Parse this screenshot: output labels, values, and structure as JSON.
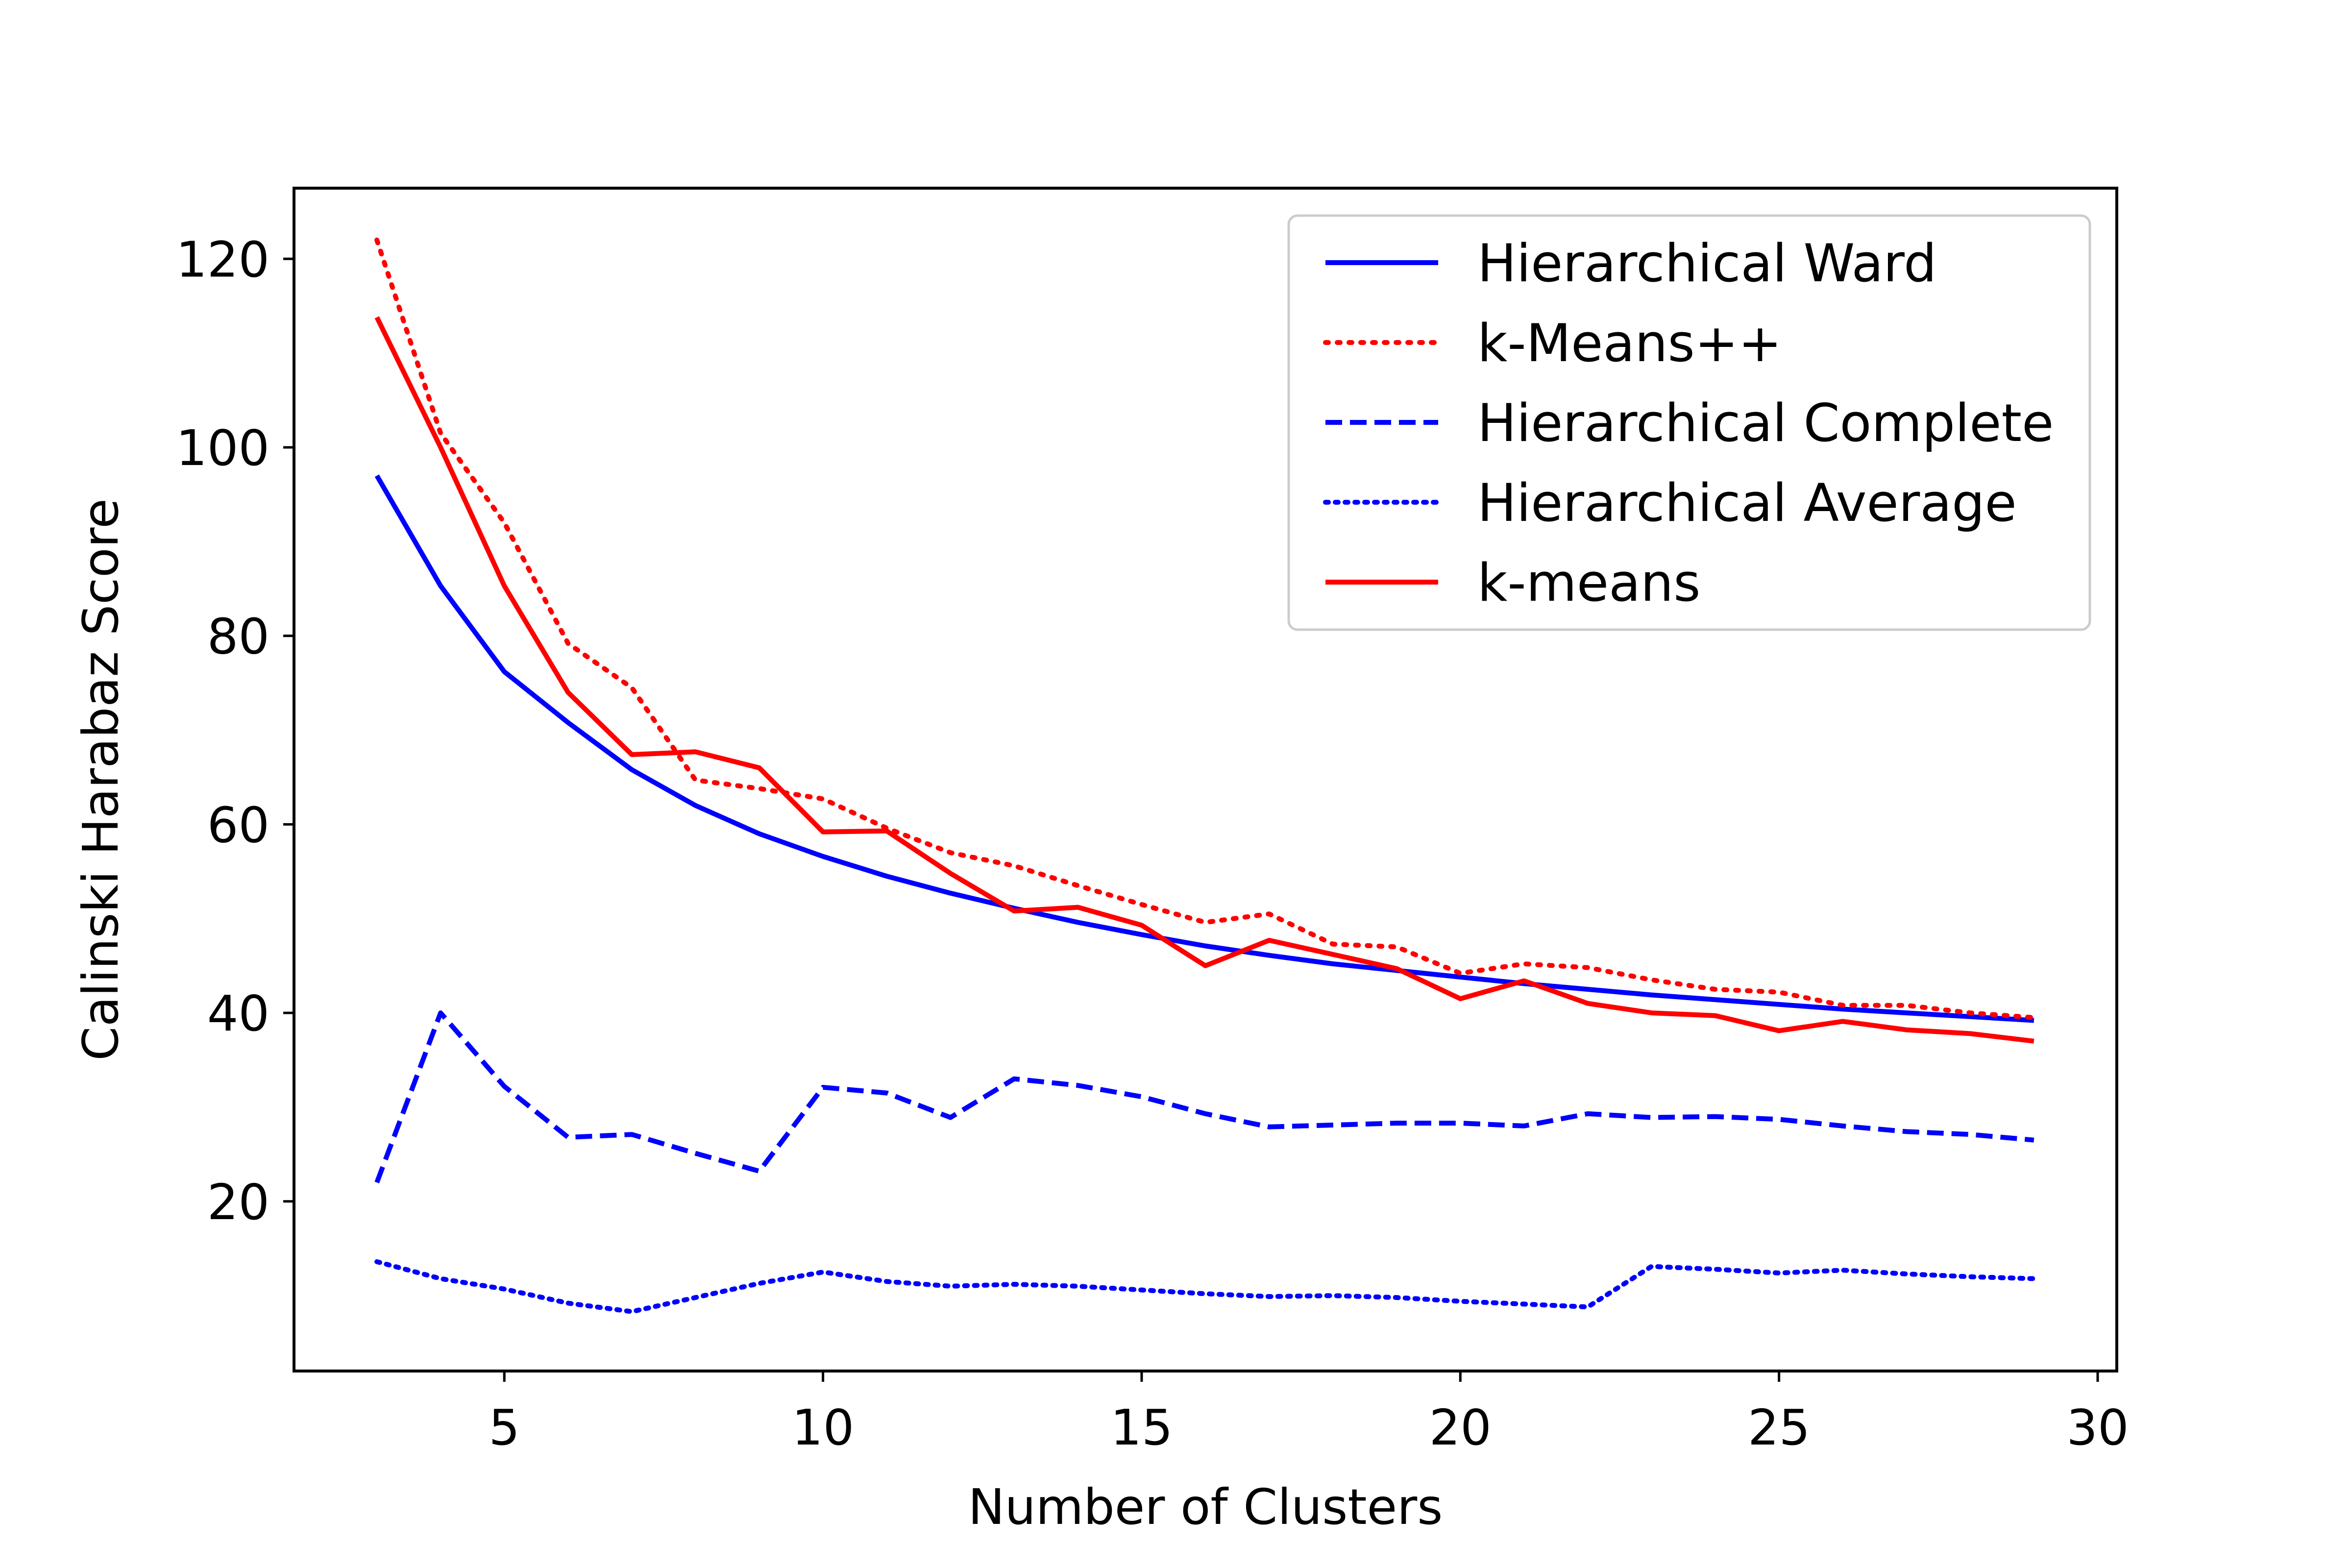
{
  "chart_data": {
    "type": "line",
    "title": "",
    "xlabel": "Number of Clusters",
    "ylabel": "Calinski Harabaz Score",
    "xlim": [
      1.7,
      30.3
    ],
    "ylim": [
      2,
      127.5
    ],
    "xticks": [
      5,
      10,
      15,
      20,
      25,
      30
    ],
    "yticks": [
      20,
      40,
      60,
      80,
      100,
      120
    ],
    "grid": false,
    "legend_position": "top-right",
    "x": [
      3,
      4,
      5,
      6,
      7,
      8,
      9,
      10,
      11,
      12,
      13,
      14,
      15,
      16,
      17,
      18,
      19,
      20,
      21,
      22,
      23,
      24,
      25,
      26,
      27,
      28,
      29
    ],
    "series": [
      {
        "name": "Hierarchical Ward",
        "color": "#0000ff",
        "dash": "solid",
        "values": [
          97.0,
          85.3,
          76.2,
          70.8,
          65.8,
          62.0,
          59.0,
          56.6,
          54.5,
          52.7,
          51.1,
          49.6,
          48.3,
          47.1,
          46.1,
          45.2,
          44.5,
          43.8,
          43.1,
          42.5,
          41.9,
          41.4,
          40.9,
          40.4,
          40.0,
          39.6,
          39.2
        ]
      },
      {
        "name": "k-Means++",
        "color": "#ff0000",
        "dash": "dotted",
        "values": [
          122.0,
          101.5,
          92.0,
          79.2,
          74.5,
          64.7,
          63.8,
          62.7,
          59.6,
          57.0,
          55.6,
          53.5,
          51.5,
          49.6,
          50.5,
          47.3,
          47.0,
          44.2,
          45.2,
          44.8,
          43.5,
          42.5,
          42.2,
          40.8,
          40.8,
          40.0,
          39.5
        ]
      },
      {
        "name": "Hierarchical Complete",
        "color": "#0000ff",
        "dash": "dashed",
        "values": [
          22.0,
          40.0,
          32.2,
          26.8,
          27.1,
          25.1,
          23.2,
          32.1,
          31.5,
          28.9,
          33.0,
          32.3,
          31.1,
          29.3,
          27.9,
          28.1,
          28.3,
          28.3,
          28.0,
          29.3,
          28.9,
          29.0,
          28.7,
          28.0,
          27.4,
          27.1,
          26.5
        ]
      },
      {
        "name": "Hierarchical Average",
        "color": "#0000ff",
        "dash": "densely-dotted",
        "values": [
          13.6,
          11.8,
          10.7,
          9.2,
          8.3,
          9.8,
          11.3,
          12.5,
          11.5,
          11.0,
          11.2,
          11.0,
          10.6,
          10.2,
          9.9,
          10.0,
          9.8,
          9.4,
          9.1,
          8.8,
          13.1,
          12.8,
          12.4,
          12.7,
          12.3,
          12.0,
          11.8
        ]
      },
      {
        "name": "k-means",
        "color": "#ff0000",
        "dash": "solid",
        "values": [
          113.8,
          100.0,
          85.3,
          74.0,
          67.4,
          67.7,
          66.0,
          59.2,
          59.3,
          54.8,
          50.8,
          51.2,
          49.3,
          45.0,
          47.7,
          46.2,
          44.7,
          41.5,
          43.4,
          41.0,
          40.0,
          39.7,
          38.1,
          39.1,
          38.2,
          37.8,
          37.0
        ]
      }
    ]
  }
}
